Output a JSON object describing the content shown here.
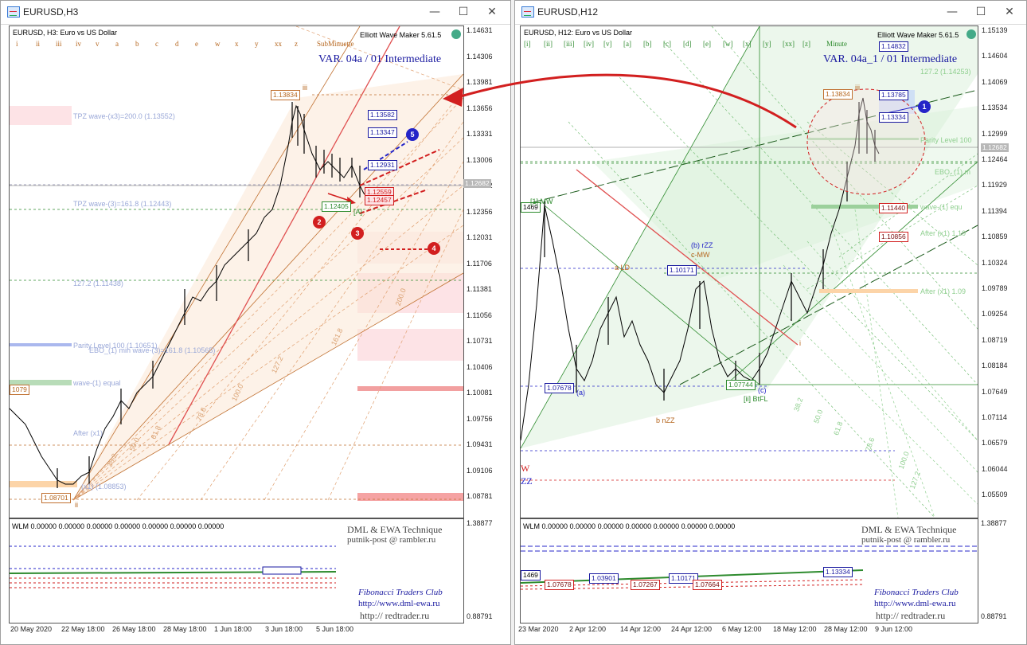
{
  "left": {
    "window_title": "EURUSD,H3",
    "header": "EURUSD, H3:  Euro vs US Dollar",
    "tool_name": "Elliott Wave Maker 5.61.5",
    "variant": "VAR. 04a  / 01 Intermediate",
    "wave_labels": [
      "i",
      "ii",
      "iii",
      "iv",
      "v",
      "a",
      "b",
      "c",
      "d",
      "e",
      "w",
      "x",
      "y",
      "xx",
      "z",
      "SubMinuette"
    ],
    "y_ticks": [
      "1.14631",
      "1.14306",
      "1.13981",
      "1.13656",
      "1.13331",
      "1.13006",
      "1.12682",
      "1.12356",
      "1.12031",
      "1.11706",
      "1.11381",
      "1.11056",
      "1.10731",
      "1.10406",
      "1.10081",
      "1.09756",
      "1.09431",
      "1.09106",
      "1.08781"
    ],
    "x_ticks": [
      "20 May 2020",
      "22 May 18:00",
      "26 May 18:00",
      "28 May 18:00",
      "1 Jun 18:00",
      "3 Jun 18:00",
      "5 Jun 18:00"
    ],
    "price_boxes": [
      "1.13582",
      "1.13347",
      "1.12931"
    ],
    "high_box": "1.13834",
    "low_box": "1.08701",
    "green_box": "1.12405",
    "red_box_a": "1.12559",
    "red_box_b": "1.12457",
    "current_price": "1.12682",
    "left_tag": "1079",
    "wave_iii": "iii",
    "wave_ii": "ii",
    "wave_A": "[A]",
    "labels": {
      "tpz_x3": "TPZ wave-(x3)=200.0 (1.13552)",
      "tpz_3": "TPZ wave-(3)=161.8 (1.12443)",
      "ext_127": "127.2 (1.11438)",
      "parity": "Parity Level 100 (1.10651)",
      "ebo": "EBO_(1) min wave-(3)=161.8 (1.10565)",
      "wave1": "wave-(1) equal",
      "after": "After (x1)",
      "low_label": "(x1) (1.08853)"
    },
    "fans": [
      "200.0",
      "161.8",
      "127.2",
      "100.0",
      "78.6",
      "61.8",
      "50.0",
      "38.2"
    ],
    "markers": [
      "2",
      "3",
      "4",
      "5"
    ],
    "sub_header": "WLM 0.00000  0.00000  0.00000  0.00000  0.00000  0.00000  0.00000",
    "sub_y_ticks": [
      "1.38877",
      "0.88791"
    ],
    "brand1": "DML & EWA Technique",
    "brand2": "putnik-post @ rambler.ru",
    "brand3": "Fibonacci    Traders    Club",
    "brand4": "http://www.dml-ewa.ru",
    "brand5": "http://  redtrader.ru"
  },
  "right": {
    "window_title": "EURUSD,H12",
    "header": "EURUSD, H12:  Euro vs US Dollar",
    "tool_name": "Elliott Wave Maker 5.61.5",
    "variant": "VAR. 04a_1  / 01 Intermediate",
    "wave_labels": [
      "[i]",
      "[ii]",
      "[iii]",
      "[iv]",
      "[v]",
      "[a]",
      "[b]",
      "[c]",
      "[d]",
      "[e]",
      "[w]",
      "[x]",
      "[y]",
      "[xx]",
      "[z]",
      "Minute"
    ],
    "y_ticks": [
      "1.15139",
      "1.14604",
      "1.14069",
      "1.13534",
      "1.12999",
      "1.12464",
      "1.11929",
      "1.11394",
      "1.10859",
      "1.10324",
      "1.09789",
      "1.09254",
      "1.08719",
      "1.08184",
      "1.07649",
      "1.07114",
      "1.06579",
      "1.06044",
      "1.05509"
    ],
    "x_ticks": [
      "23 Mar 2020",
      "2 Apr 12:00",
      "14 Apr 12:00",
      "24 Apr 12:00",
      "6 May 12:00",
      "18 May 12:00",
      "28 May 12:00",
      "9 Jun 12:00"
    ],
    "price_boxes": [
      "1.14832",
      "1.13785",
      "1.13334"
    ],
    "high_box": "1.13834",
    "red_box_a": "1.11440",
    "red_box_b": "1.10856",
    "box_a": "1.10171",
    "box_b": "1.07678",
    "box_c": "1.07744",
    "left_tag": "1469",
    "current_price": "1.12682",
    "labels": {
      "ext_127": "127.2 (1.14253)",
      "parity": "Parity Level 100",
      "ebo": "EBO_(1) m",
      "wave1": "wave-(1) equ",
      "after1": "After (x1) 1.10",
      "after2": "After (x1) 1.09",
      "mw": "[1] MW",
      "rzz": "(b) rZZ",
      "cmw": "c-MW",
      "ald": "a LD",
      "bnzz": "b nZZ",
      "btfl": "[ii] BtFL",
      "w": "W",
      "zz": "ZZ",
      "wave_iii": "iii",
      "wave_c": "(c)",
      "wave_a": "(a)",
      "wave_i": "i"
    },
    "fans": [
      "100.0",
      "78.6",
      "61.8",
      "50.0",
      "38.2",
      "127.2"
    ],
    "markers": [
      "1"
    ],
    "sub_header": "WLM 0.00000  0.00000  0.00000  0.00000  0.00000  0.00000  0.00000",
    "sub_y_ticks": [
      "1.38877",
      "0.88791"
    ],
    "sub_boxes": [
      "1469",
      "1.03901",
      "1.07678",
      "1.07267",
      "1.10171",
      "1.07664",
      "1.13334"
    ],
    "brand1": "DML & EWA Technique",
    "brand2": "putnik-post @ rambler.ru",
    "brand3": "Fibonacci    Traders    Club",
    "brand4": "http://www.dml-ewa.ru",
    "brand5": "http://  redtrader.ru"
  },
  "colors": {
    "blue_box": "#1a1aa0",
    "red_marker": "#d21f1f",
    "blue_marker": "#2424c8",
    "orange": "#b5651d",
    "green": "#2e8b2e"
  },
  "window_controls": {
    "minimize": "—",
    "maximize": "☐",
    "close": "✕"
  }
}
